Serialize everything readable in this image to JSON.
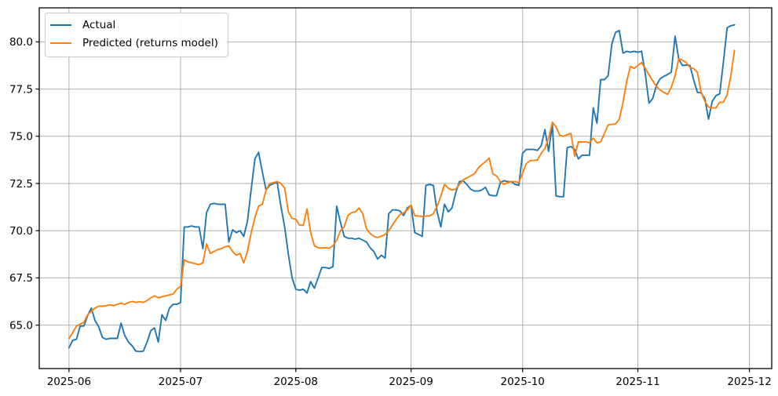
{
  "figure": {
    "background_color": "#ffffff"
  },
  "colors": {
    "actual_line": "#1f77b4",
    "predicted_line": "#ff7f0e",
    "grid": "#b0b0b0",
    "spine": "#000000",
    "tick_label": "#000000",
    "legend_border": "#cccccc",
    "legend_background": "#ffffff"
  },
  "legend": {
    "position": "upper-left",
    "items": [
      {
        "label": "Actual",
        "color": "#1f77b4"
      },
      {
        "label": "Predicted (returns model)",
        "color": "#ff7f0e"
      }
    ]
  },
  "chart_data": {
    "type": "line",
    "title": "",
    "xlabel": "",
    "ylabel": "",
    "grid": true,
    "legend_position": "upper-left",
    "x_axis": {
      "kind": "daily-dates",
      "start_date": "2025-06-01",
      "end_date": "2025-11-27",
      "interval_days": 1,
      "tick_labels": [
        "2025-06",
        "2025-07",
        "2025-08",
        "2025-09",
        "2025-10",
        "2025-11",
        "2025-12"
      ],
      "tick_day_offsets": [
        0,
        30,
        61,
        92,
        122,
        153,
        183
      ],
      "axis_day_limits": [
        -8,
        189
      ]
    },
    "y_axis": {
      "tick_labels": [
        "65.0",
        "67.5",
        "70.0",
        "72.5",
        "75.0",
        "77.5",
        "80.0"
      ],
      "tick_values": [
        65.0,
        67.5,
        70.0,
        72.5,
        75.0,
        77.5,
        80.0
      ],
      "limits": [
        62.7,
        81.8
      ]
    },
    "series": [
      {
        "name": "Actual",
        "color": "#1f77b4",
        "values": [
          63.8,
          64.2,
          64.25,
          64.95,
          64.95,
          65.5,
          65.9,
          65.25,
          64.9,
          64.35,
          64.25,
          64.3,
          64.3,
          64.3,
          65.1,
          64.45,
          64.1,
          63.9,
          63.62,
          63.6,
          63.62,
          64.1,
          64.7,
          64.85,
          64.1,
          65.55,
          65.25,
          65.9,
          66.1,
          66.1,
          66.2,
          70.2,
          70.2,
          70.25,
          70.2,
          70.2,
          69.05,
          70.95,
          71.4,
          71.45,
          71.4,
          71.4,
          71.4,
          69.4,
          70.05,
          69.9,
          70.0,
          69.7,
          70.5,
          72.2,
          73.8,
          74.15,
          73.1,
          72.15,
          72.4,
          72.5,
          72.55,
          71.3,
          70.2,
          68.75,
          67.5,
          66.9,
          66.85,
          66.9,
          66.7,
          67.3,
          66.95,
          67.5,
          68.05,
          68.05,
          68.0,
          68.1,
          71.3,
          70.45,
          69.7,
          69.6,
          69.6,
          69.55,
          69.6,
          69.5,
          69.4,
          69.1,
          68.9,
          68.5,
          68.7,
          68.55,
          70.9,
          71.1,
          71.1,
          71.05,
          70.8,
          71.2,
          71.35,
          69.9,
          69.8,
          69.7,
          72.4,
          72.45,
          72.4,
          71.0,
          70.2,
          71.4,
          71.0,
          71.2,
          72.0,
          72.6,
          72.65,
          72.45,
          72.2,
          72.1,
          72.1,
          72.15,
          72.3,
          71.9,
          71.85,
          71.85,
          72.55,
          72.65,
          72.6,
          72.6,
          72.45,
          72.4,
          74.1,
          74.3,
          74.3,
          74.3,
          74.25,
          74.5,
          75.35,
          74.2,
          75.65,
          71.84,
          71.8,
          71.8,
          74.4,
          74.45,
          74.3,
          73.8,
          74.0,
          74.0,
          74.0,
          76.5,
          75.7,
          78.0,
          78.0,
          78.2,
          79.9,
          80.5,
          80.6,
          79.4,
          79.5,
          79.45,
          79.5,
          79.45,
          79.5,
          78.3,
          76.75,
          77.0,
          77.7,
          78.05,
          78.17,
          78.27,
          78.4,
          80.3,
          79.08,
          78.75,
          78.77,
          78.75,
          78.0,
          77.33,
          77.3,
          77.0,
          75.9,
          76.85,
          77.15,
          77.25,
          78.9,
          80.75,
          80.85,
          80.9
        ]
      },
      {
        "name": "Predicted (returns model)",
        "color": "#ff7f0e",
        "values": [
          64.3,
          64.6,
          64.95,
          65.05,
          65.15,
          65.55,
          65.73,
          65.9,
          66.0,
          66.0,
          66.03,
          66.08,
          66.03,
          66.1,
          66.16,
          66.1,
          66.2,
          66.25,
          66.2,
          66.24,
          66.2,
          66.3,
          66.45,
          66.55,
          66.45,
          66.5,
          66.55,
          66.6,
          66.65,
          66.9,
          67.05,
          68.45,
          68.35,
          68.3,
          68.25,
          68.2,
          68.3,
          69.3,
          68.8,
          68.9,
          69.0,
          69.05,
          69.15,
          69.2,
          68.9,
          68.7,
          68.8,
          68.3,
          68.9,
          69.9,
          70.7,
          71.3,
          71.4,
          72.15,
          72.5,
          72.55,
          72.6,
          72.5,
          72.25,
          71.0,
          70.65,
          70.6,
          70.3,
          70.28,
          71.16,
          69.9,
          69.2,
          69.1,
          69.08,
          69.1,
          69.07,
          69.2,
          69.5,
          70.0,
          70.2,
          70.8,
          70.95,
          71.0,
          71.2,
          70.9,
          70.1,
          69.85,
          69.7,
          69.64,
          69.7,
          69.8,
          70.0,
          70.3,
          70.6,
          70.85,
          70.95,
          71.1,
          71.36,
          70.8,
          70.78,
          70.75,
          70.78,
          70.78,
          70.9,
          71.3,
          71.84,
          72.45,
          72.25,
          72.15,
          72.2,
          72.45,
          72.68,
          72.8,
          72.9,
          73.0,
          73.3,
          73.5,
          73.65,
          73.85,
          73.0,
          72.9,
          72.6,
          72.45,
          72.55,
          72.6,
          72.6,
          72.55,
          73.05,
          73.55,
          73.7,
          73.72,
          73.74,
          74.1,
          74.35,
          74.9,
          75.74,
          75.5,
          75.05,
          75.0,
          75.08,
          75.15,
          73.95,
          74.7,
          74.7,
          74.7,
          74.65,
          74.9,
          74.65,
          74.7,
          75.15,
          75.6,
          75.63,
          75.65,
          75.9,
          76.8,
          77.9,
          78.7,
          78.6,
          78.75,
          78.9,
          78.6,
          78.25,
          77.95,
          77.64,
          77.45,
          77.32,
          77.22,
          77.6,
          78.2,
          79.1,
          79.03,
          78.9,
          78.65,
          78.58,
          78.4,
          77.36,
          76.85,
          76.55,
          76.5,
          76.5,
          76.8,
          76.8,
          77.2,
          78.2,
          79.55
        ]
      }
    ]
  }
}
